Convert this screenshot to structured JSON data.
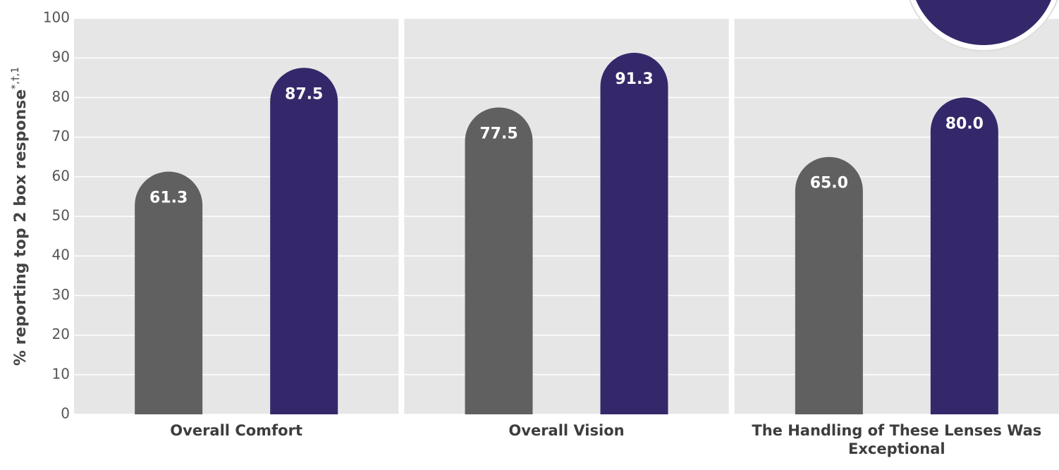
{
  "chart_data": {
    "type": "bar",
    "y_label": "% reporting top 2 box response",
    "y_label_superscript": "*,†,1",
    "categories": [
      "Overall Comfort",
      "Overall Vision",
      "The Handling of These Lenses Was Exceptional"
    ],
    "series": [
      {
        "color": "#606060",
        "values": [
          61.3,
          77.5,
          65.0
        ],
        "value_labels": [
          "61.3",
          "77.5",
          "65.0"
        ]
      },
      {
        "color": "#35286a",
        "values": [
          87.5,
          91.3,
          80.0
        ],
        "value_labels": [
          "87.5",
          "91.3",
          "80.0"
        ]
      }
    ],
    "ylim": [
      0,
      100
    ],
    "yticks": [
      0,
      10,
      20,
      30,
      40,
      50,
      60,
      70,
      80,
      90,
      100
    ],
    "grid": true
  }
}
